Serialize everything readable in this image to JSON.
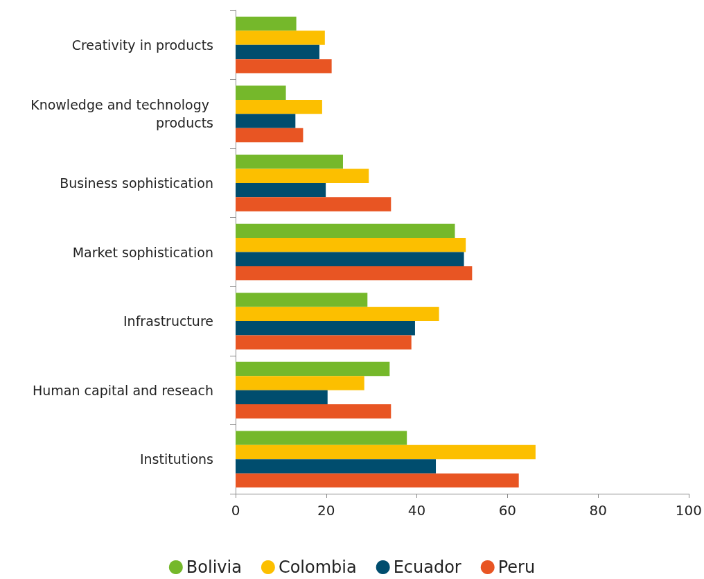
{
  "chart_data": {
    "type": "bar",
    "orientation": "horizontal",
    "categories": [
      "Creativity in products",
      "Knowledge and technology products",
      "Business sophistication",
      "Market sophistication",
      "Infrastructure",
      "Human capital and reseach",
      "Institutions"
    ],
    "series": [
      {
        "name": "Bolivia",
        "color": "#75b82b",
        "values": [
          13.4,
          11.1,
          23.7,
          48.4,
          29.1,
          34.0,
          37.8
        ]
      },
      {
        "name": "Colombia",
        "color": "#fcbf00",
        "values": [
          19.7,
          19.1,
          29.4,
          50.8,
          44.9,
          28.4,
          66.2
        ]
      },
      {
        "name": "Ecuador",
        "color": "#004d6e",
        "values": [
          18.5,
          13.2,
          19.9,
          50.4,
          39.6,
          20.3,
          44.2
        ]
      },
      {
        "name": "Peru",
        "color": "#e85523",
        "values": [
          21.2,
          14.9,
          34.3,
          52.2,
          38.8,
          34.3,
          62.5
        ]
      }
    ],
    "xlim": [
      0,
      100
    ],
    "xticks": [
      0,
      20,
      40,
      60,
      80,
      100
    ],
    "grid": false,
    "legend": "bottom"
  }
}
